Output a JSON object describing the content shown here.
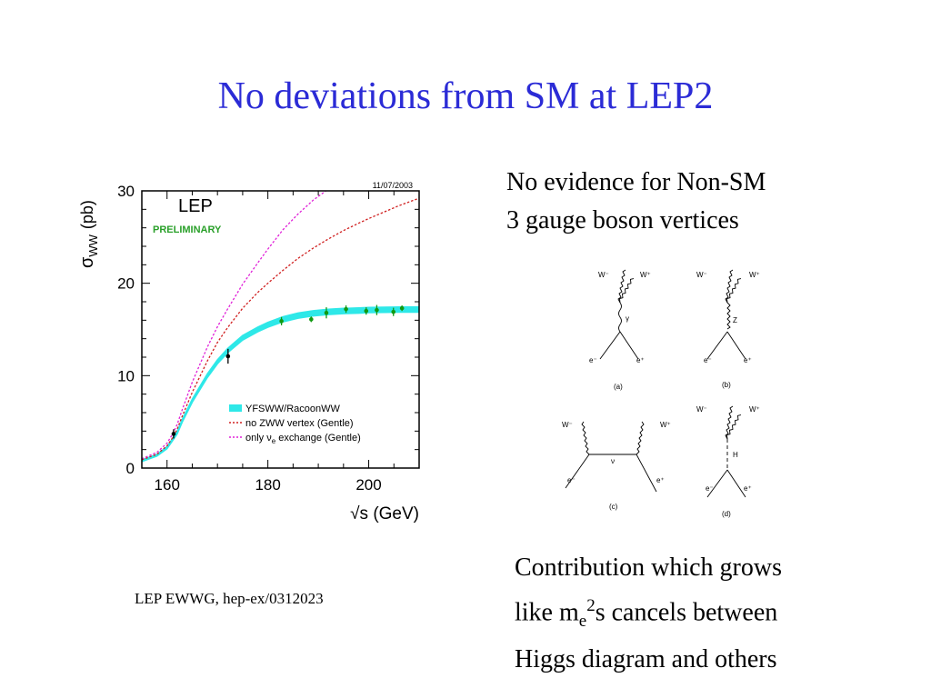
{
  "slide": {
    "title": "No deviations from SM at LEP2",
    "note_top": [
      "No evidence for Non-SM",
      "3 gauge boson vertices"
    ],
    "note_bottom_line1": "Contribution which grows",
    "note_bottom_line2_pre": "like m",
    "note_bottom_line2_sub": "e",
    "note_bottom_line2_sup": "2",
    "note_bottom_line2_post": "s cancels between",
    "note_bottom_line3": "Higgs diagram and others",
    "citation": "LEP EWWG, hep-ex/0312023"
  },
  "chart_data": {
    "type": "line",
    "date": "11/07/2003",
    "label_lep": "LEP",
    "label_preliminary": "PRELIMINARY",
    "ylabel_main": "σ",
    "ylabel_sub": "WW",
    "ylabel_unit": "(pb)",
    "xlabel": "√s (GeV)",
    "xlim": [
      155,
      210
    ],
    "ylim": [
      0,
      30
    ],
    "xticks": [
      160,
      180,
      200
    ],
    "yticks": [
      0,
      10,
      20,
      30
    ],
    "colors": {
      "band": "#2ee8e8",
      "zww": "#d02020",
      "nue": "#e020d8",
      "data": "#119911",
      "data_early": "#000000",
      "frame": "#000000",
      "prelim": "#2aa02a"
    },
    "legend": [
      {
        "name": "YFSWW/RacoonWW",
        "style": "band"
      },
      {
        "name": "no ZWW vertex (Gentle)",
        "style": "zww"
      },
      {
        "name": "only ν",
        "sub": "e",
        "tail": " exchange (Gentle)",
        "style": "nue"
      }
    ],
    "series": [
      {
        "name": "YFSWW/RacoonWW",
        "x": [
          155,
          158,
          160,
          161,
          162,
          163,
          165,
          168,
          170,
          172,
          175,
          178,
          180,
          183,
          186,
          189,
          192,
          195,
          198,
          200,
          203,
          206,
          208,
          210
        ],
        "y": [
          0.8,
          1.4,
          2.2,
          3.0,
          3.8,
          5.1,
          7.3,
          10.0,
          11.5,
          12.7,
          14.1,
          15.0,
          15.5,
          16.1,
          16.5,
          16.75,
          16.9,
          17.0,
          17.05,
          17.1,
          17.12,
          17.15,
          17.15,
          17.15
        ]
      },
      {
        "name": "no ZWW vertex (Gentle)",
        "x": [
          155,
          158,
          160,
          161,
          162,
          163,
          165,
          168,
          170,
          172,
          175,
          178,
          180,
          183,
          186,
          189,
          192,
          195,
          198,
          200,
          203,
          206,
          208,
          210
        ],
        "y": [
          0.9,
          1.5,
          2.4,
          3.2,
          4.2,
          5.6,
          8.2,
          11.6,
          13.6,
          15.2,
          17.3,
          19.0,
          20.0,
          21.4,
          22.7,
          23.8,
          24.8,
          25.7,
          26.5,
          27.0,
          27.7,
          28.4,
          28.8,
          29.2
        ]
      },
      {
        "name": "only νe exchange (Gentle)",
        "x": [
          155,
          158,
          160,
          161,
          162,
          163,
          165,
          168,
          170,
          172,
          175,
          178,
          180,
          183,
          186,
          189,
          192,
          195,
          196
        ],
        "y": [
          1.0,
          1.7,
          2.7,
          3.6,
          4.7,
          6.3,
          9.3,
          13.1,
          15.3,
          17.2,
          19.9,
          22.2,
          23.7,
          25.8,
          27.5,
          29.0,
          30.2,
          31.2,
          31.5
        ]
      }
    ],
    "data_points": [
      {
        "x": 161.3,
        "y": 3.7,
        "err": 0.5,
        "early": true
      },
      {
        "x": 172.1,
        "y": 12.1,
        "err": 0.8,
        "early": true
      },
      {
        "x": 182.7,
        "y": 15.9,
        "err": 0.45,
        "early": false
      },
      {
        "x": 188.6,
        "y": 16.1,
        "err": 0.3,
        "early": false
      },
      {
        "x": 191.6,
        "y": 16.8,
        "err": 0.6,
        "early": false
      },
      {
        "x": 195.5,
        "y": 17.2,
        "err": 0.4,
        "early": false
      },
      {
        "x": 199.5,
        "y": 17.0,
        "err": 0.4,
        "early": false
      },
      {
        "x": 201.6,
        "y": 17.1,
        "err": 0.55,
        "early": false
      },
      {
        "x": 204.9,
        "y": 16.9,
        "err": 0.45,
        "early": false
      },
      {
        "x": 206.6,
        "y": 17.3,
        "err": 0.3,
        "early": false
      }
    ]
  },
  "diagrams": {
    "a": {
      "top_left": "W⁻",
      "top_right": "W⁺",
      "mid": "γ",
      "bot_left": "e⁻",
      "bot_right": "e⁺",
      "caption": "(a)"
    },
    "b": {
      "top_left": "W⁻",
      "top_right": "W⁺",
      "mid": "Z",
      "bot_left": "e⁻",
      "bot_right": "e⁺",
      "caption": "(b)"
    },
    "c": {
      "top_left": "W⁻",
      "top_right": "W⁺",
      "mid": "ν",
      "bot_left": "e⁻",
      "bot_right": "e⁺",
      "caption": "(c)"
    },
    "d": {
      "top_left": "W⁻",
      "top_right": "W⁺",
      "mid": "H",
      "bot_left": "e⁻",
      "bot_right": "e⁺",
      "caption": "(d)"
    }
  }
}
